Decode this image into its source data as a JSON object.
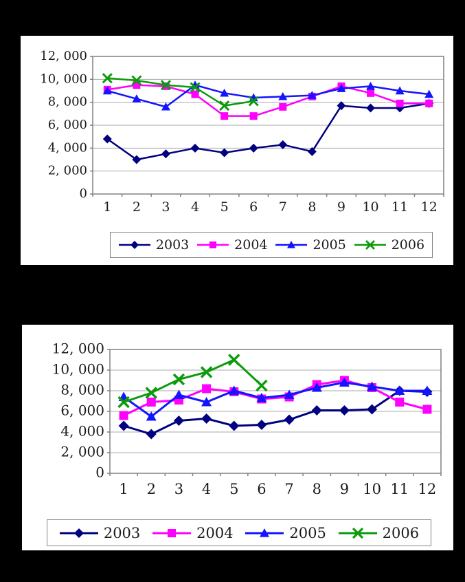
{
  "page": {
    "background_color": "#000000",
    "panel_color": "#ffffff",
    "gridline_color": "#aaaaaa",
    "plot_border_color": "#808080"
  },
  "chart_data": [
    {
      "id": "top",
      "type": "line",
      "title": "",
      "xlabel": "",
      "ylabel": "",
      "categories": [
        "1",
        "2",
        "3",
        "4",
        "5",
        "6",
        "7",
        "8",
        "9",
        "10",
        "11",
        "12"
      ],
      "y_tick_labels": [
        "0",
        "2, 000",
        "4, 000",
        "6, 000",
        "8, 000",
        "10, 000",
        "12, 000"
      ],
      "ylim": [
        0,
        12000
      ],
      "y_step": 2000,
      "grid": true,
      "legend_position": "bottom",
      "series": [
        {
          "name": "2003",
          "color": "#000080",
          "marker": "diamond",
          "values": [
            4800,
            3000,
            3500,
            4000,
            3600,
            4000,
            4300,
            3700,
            7700,
            7500,
            7500,
            7900
          ]
        },
        {
          "name": "2004",
          "color": "#FF00FF",
          "marker": "square",
          "values": [
            9100,
            9500,
            9400,
            8700,
            6800,
            6800,
            7600,
            8500,
            9400,
            8800,
            7900,
            7900
          ]
        },
        {
          "name": "2005",
          "color": "#1414FF",
          "marker": "triangle",
          "values": [
            9000,
            8300,
            7600,
            9500,
            8800,
            8400,
            8500,
            8600,
            9200,
            9400,
            9000,
            8700
          ]
        },
        {
          "name": "2006",
          "color": "#0B9B0B",
          "marker": "x",
          "values": [
            10100,
            9900,
            9500,
            9300,
            7700,
            8100,
            null,
            null,
            null,
            null,
            null,
            null
          ]
        }
      ]
    },
    {
      "id": "bottom",
      "type": "line",
      "title": "",
      "xlabel": "",
      "ylabel": "",
      "categories": [
        "1",
        "2",
        "3",
        "4",
        "5",
        "6",
        "7",
        "8",
        "9",
        "10",
        "11",
        "12"
      ],
      "y_tick_labels": [
        "0",
        "2, 000",
        "4, 000",
        "6, 000",
        "8, 000",
        "10, 000",
        "12, 000"
      ],
      "ylim": [
        0,
        12000
      ],
      "y_step": 2000,
      "grid": true,
      "legend_position": "bottom",
      "series": [
        {
          "name": "2003",
          "color": "#000080",
          "marker": "diamond",
          "values": [
            4600,
            3800,
            5100,
            5300,
            4600,
            4700,
            5200,
            6100,
            6100,
            6200,
            8000,
            7900
          ]
        },
        {
          "name": "2004",
          "color": "#FF00FF",
          "marker": "square",
          "values": [
            5600,
            6900,
            7100,
            8200,
            7900,
            7200,
            7400,
            8600,
            9000,
            8300,
            6900,
            6200
          ]
        },
        {
          "name": "2005",
          "color": "#1414FF",
          "marker": "triangle",
          "values": [
            7400,
            5500,
            7600,
            6900,
            8000,
            7300,
            7600,
            8300,
            8800,
            8400,
            8000,
            8000
          ]
        },
        {
          "name": "2006",
          "color": "#0B9B0B",
          "marker": "x",
          "values": [
            6900,
            7800,
            9100,
            9800,
            11000,
            8500,
            null,
            null,
            null,
            null,
            null,
            null
          ]
        }
      ]
    }
  ]
}
